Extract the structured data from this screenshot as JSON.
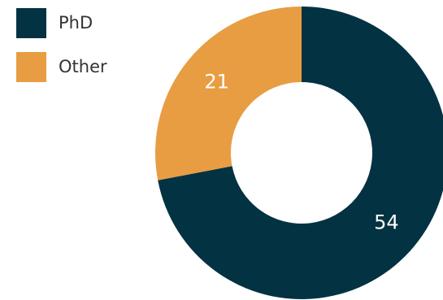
{
  "chart_data": {
    "type": "pie",
    "categories": [
      "PhD",
      "Other"
    ],
    "values": [
      54,
      21
    ],
    "colors": [
      "#033242",
      "#e89d43"
    ],
    "legend": "top-left"
  }
}
